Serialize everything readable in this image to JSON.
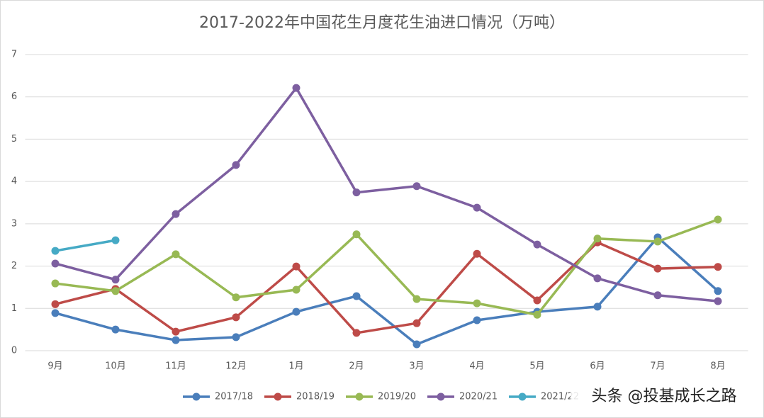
{
  "chart_data": {
    "type": "line",
    "title": "2017-2022年中国花生月度花生油进口情况（万吨）",
    "categories": [
      "9月",
      "10月",
      "11月",
      "12月",
      "1月",
      "2月",
      "3月",
      "4月",
      "5月",
      "6月",
      "7月",
      "8月"
    ],
    "series": [
      {
        "name": "2017/18",
        "color": "#4a7ebb",
        "values": [
          0.89,
          0.5,
          0.25,
          0.32,
          0.92,
          1.29,
          0.15,
          0.72,
          0.92,
          1.04,
          2.68,
          1.41
        ]
      },
      {
        "name": "2018/19",
        "color": "#be4b48",
        "values": [
          1.1,
          1.46,
          0.45,
          0.79,
          1.99,
          0.42,
          0.65,
          2.29,
          1.19,
          2.56,
          1.94,
          1.98
        ]
      },
      {
        "name": "2019/20",
        "color": "#98b954",
        "values": [
          1.59,
          1.41,
          2.28,
          1.26,
          1.44,
          2.75,
          1.22,
          1.12,
          0.85,
          2.65,
          2.58,
          3.1
        ]
      },
      {
        "name": "2020/21",
        "color": "#7d5fa0",
        "values": [
          2.06,
          1.68,
          3.23,
          4.39,
          6.21,
          3.74,
          3.89,
          3.38,
          2.51,
          1.71,
          1.31,
          1.17
        ]
      },
      {
        "name": "2021/22",
        "color": "#46aac5",
        "values": [
          2.36,
          2.61,
          null,
          null,
          null,
          null,
          null,
          null,
          null,
          null,
          null,
          null
        ]
      }
    ],
    "ylim": [
      0,
      7
    ],
    "yticks": [
      0,
      1,
      2,
      3,
      4,
      5,
      6,
      7
    ],
    "grid": true,
    "legend": "bottom",
    "watermark": "头条 @投基成长之路"
  }
}
